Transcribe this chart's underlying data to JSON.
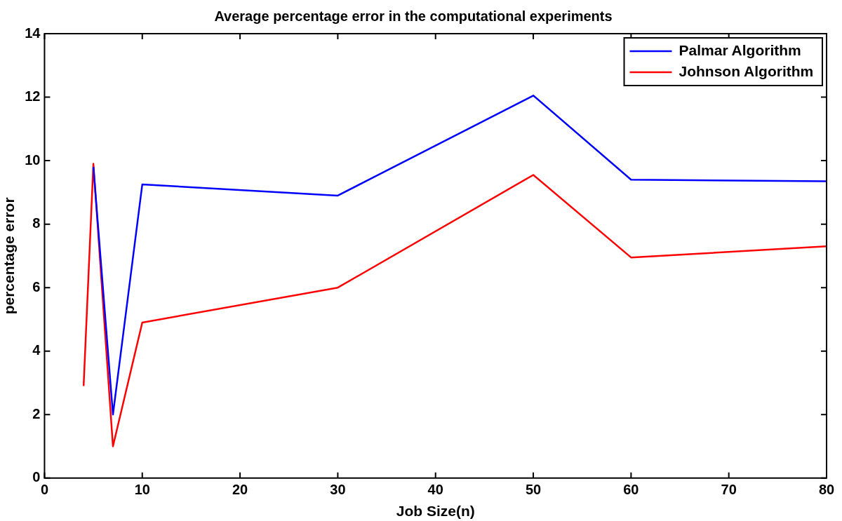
{
  "chart_data": {
    "type": "line",
    "title": "Average percentage error in the computational experiments",
    "xlabel": "Job Size(n)",
    "ylabel": "percentage error",
    "series": [
      {
        "name": "Palmar Algorithm",
        "color": "#0000ff",
        "x": [
          5,
          7,
          10,
          30,
          50,
          60,
          80
        ],
        "values": [
          9.8,
          2.0,
          9.25,
          8.9,
          12.05,
          9.4,
          9.35
        ]
      },
      {
        "name": "Johnson Algorithm",
        "color": "#ff0000",
        "x": [
          4,
          5,
          7,
          10,
          30,
          50,
          60,
          80
        ],
        "values": [
          2.9,
          9.9,
          1.0,
          4.9,
          6.0,
          9.55,
          6.95,
          7.3
        ]
      }
    ],
    "xlim": [
      0,
      80
    ],
    "xticks": [
      0,
      10,
      20,
      30,
      40,
      50,
      60,
      70,
      80
    ],
    "ylim": [
      0,
      14
    ],
    "yticks": [
      0,
      2,
      4,
      6,
      8,
      10,
      12,
      14
    ],
    "grid": false,
    "legend": "top right",
    "marker": "none",
    "line_style": "solid"
  }
}
